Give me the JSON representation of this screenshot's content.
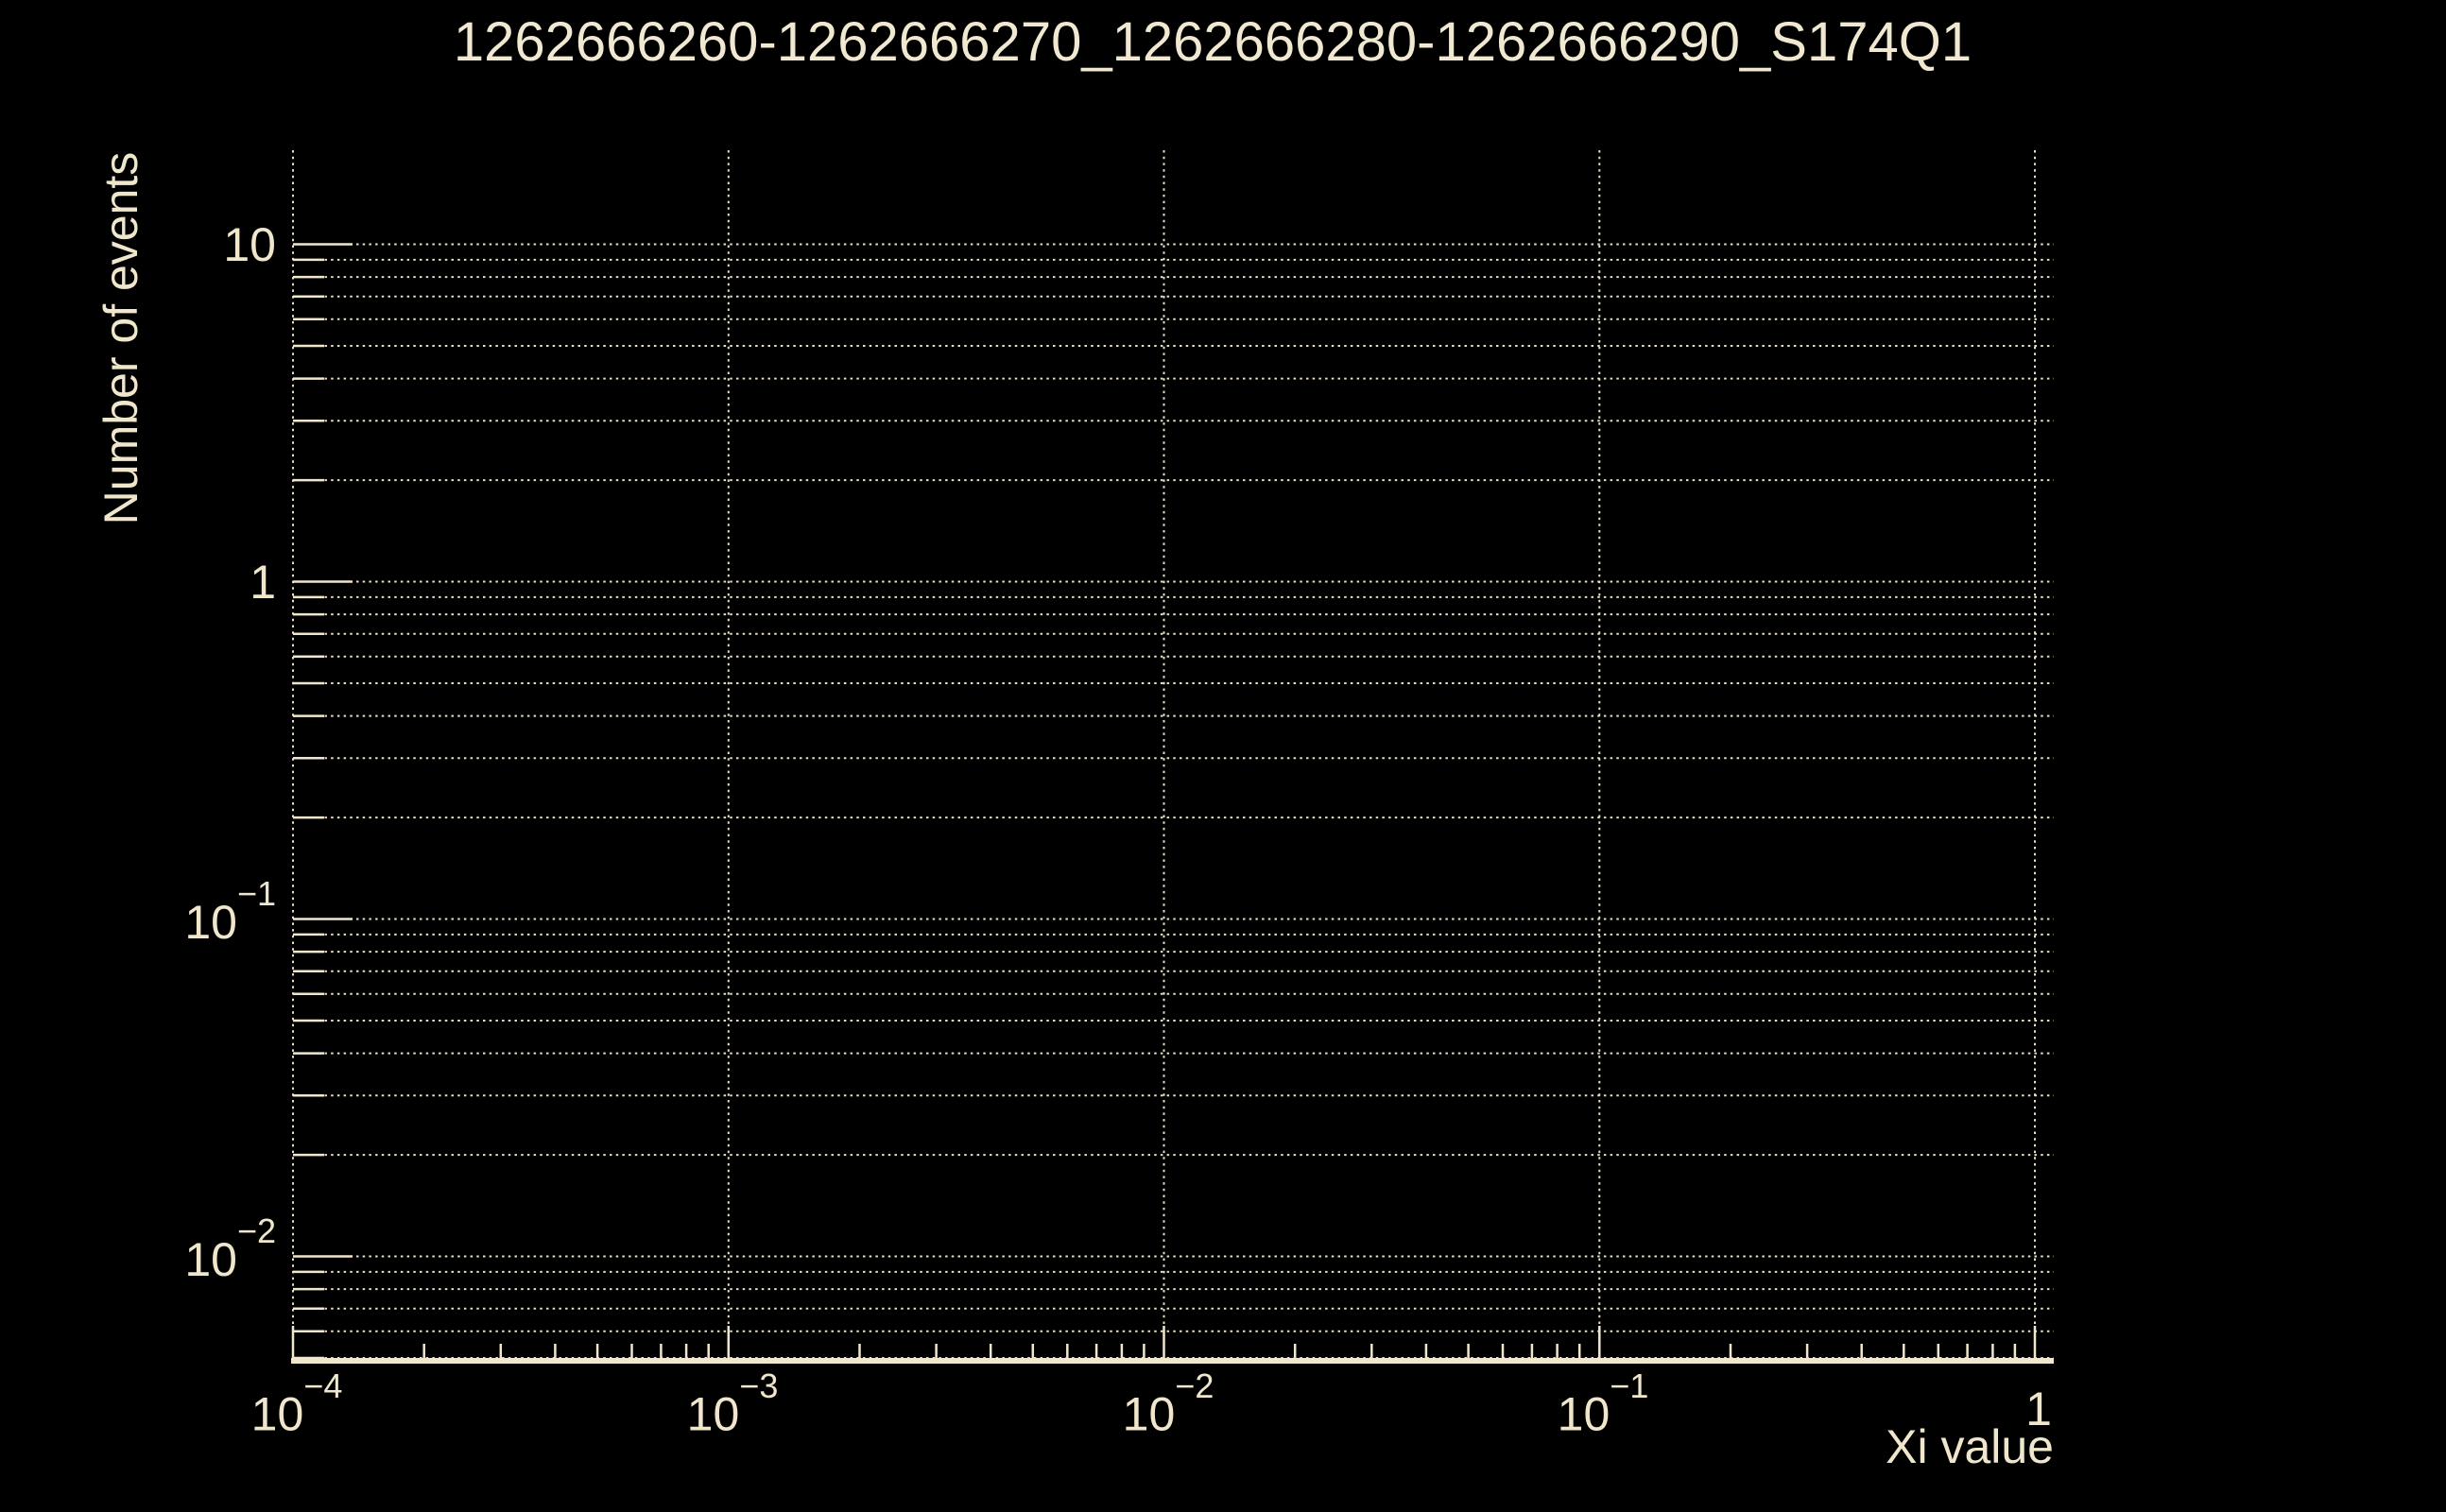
{
  "colors": {
    "background": "#000000",
    "foreground": "#efe6cb",
    "grid": "#e8dfc4",
    "title_text": "#f0e8d0"
  },
  "chart_data": {
    "type": "bar",
    "subtype": "empty-log-histogram",
    "title": "1262666260-1262666270_1262666280-1262666290_S174Q1",
    "xlabel": "Xi value",
    "ylabel": "Number of events",
    "xscale": "log",
    "yscale": "log",
    "xlim": [
      0.0001,
      1.105
    ],
    "ylim": [
      0.005,
      19
    ],
    "grid": true,
    "legend": false,
    "x_ticks": [
      {
        "value": 0.0001,
        "base": "10",
        "exp": "−4"
      },
      {
        "value": 0.001,
        "base": "10",
        "exp": "−3"
      },
      {
        "value": 0.01,
        "base": "10",
        "exp": "−2"
      },
      {
        "value": 0.1,
        "base": "10",
        "exp": "−1"
      },
      {
        "value": 1,
        "base": "1",
        "exp": null
      }
    ],
    "y_ticks": [
      {
        "value": 10,
        "base": "10",
        "exp": null
      },
      {
        "value": 1,
        "base": "1",
        "exp": null
      },
      {
        "value": 0.1,
        "base": "10",
        "exp": "−1"
      },
      {
        "value": 0.01,
        "base": "10",
        "exp": "−2"
      }
    ],
    "series": [],
    "visible_data_points": 0,
    "baseline_note": "empty histogram drawn as a thick line along the bottom axis"
  }
}
